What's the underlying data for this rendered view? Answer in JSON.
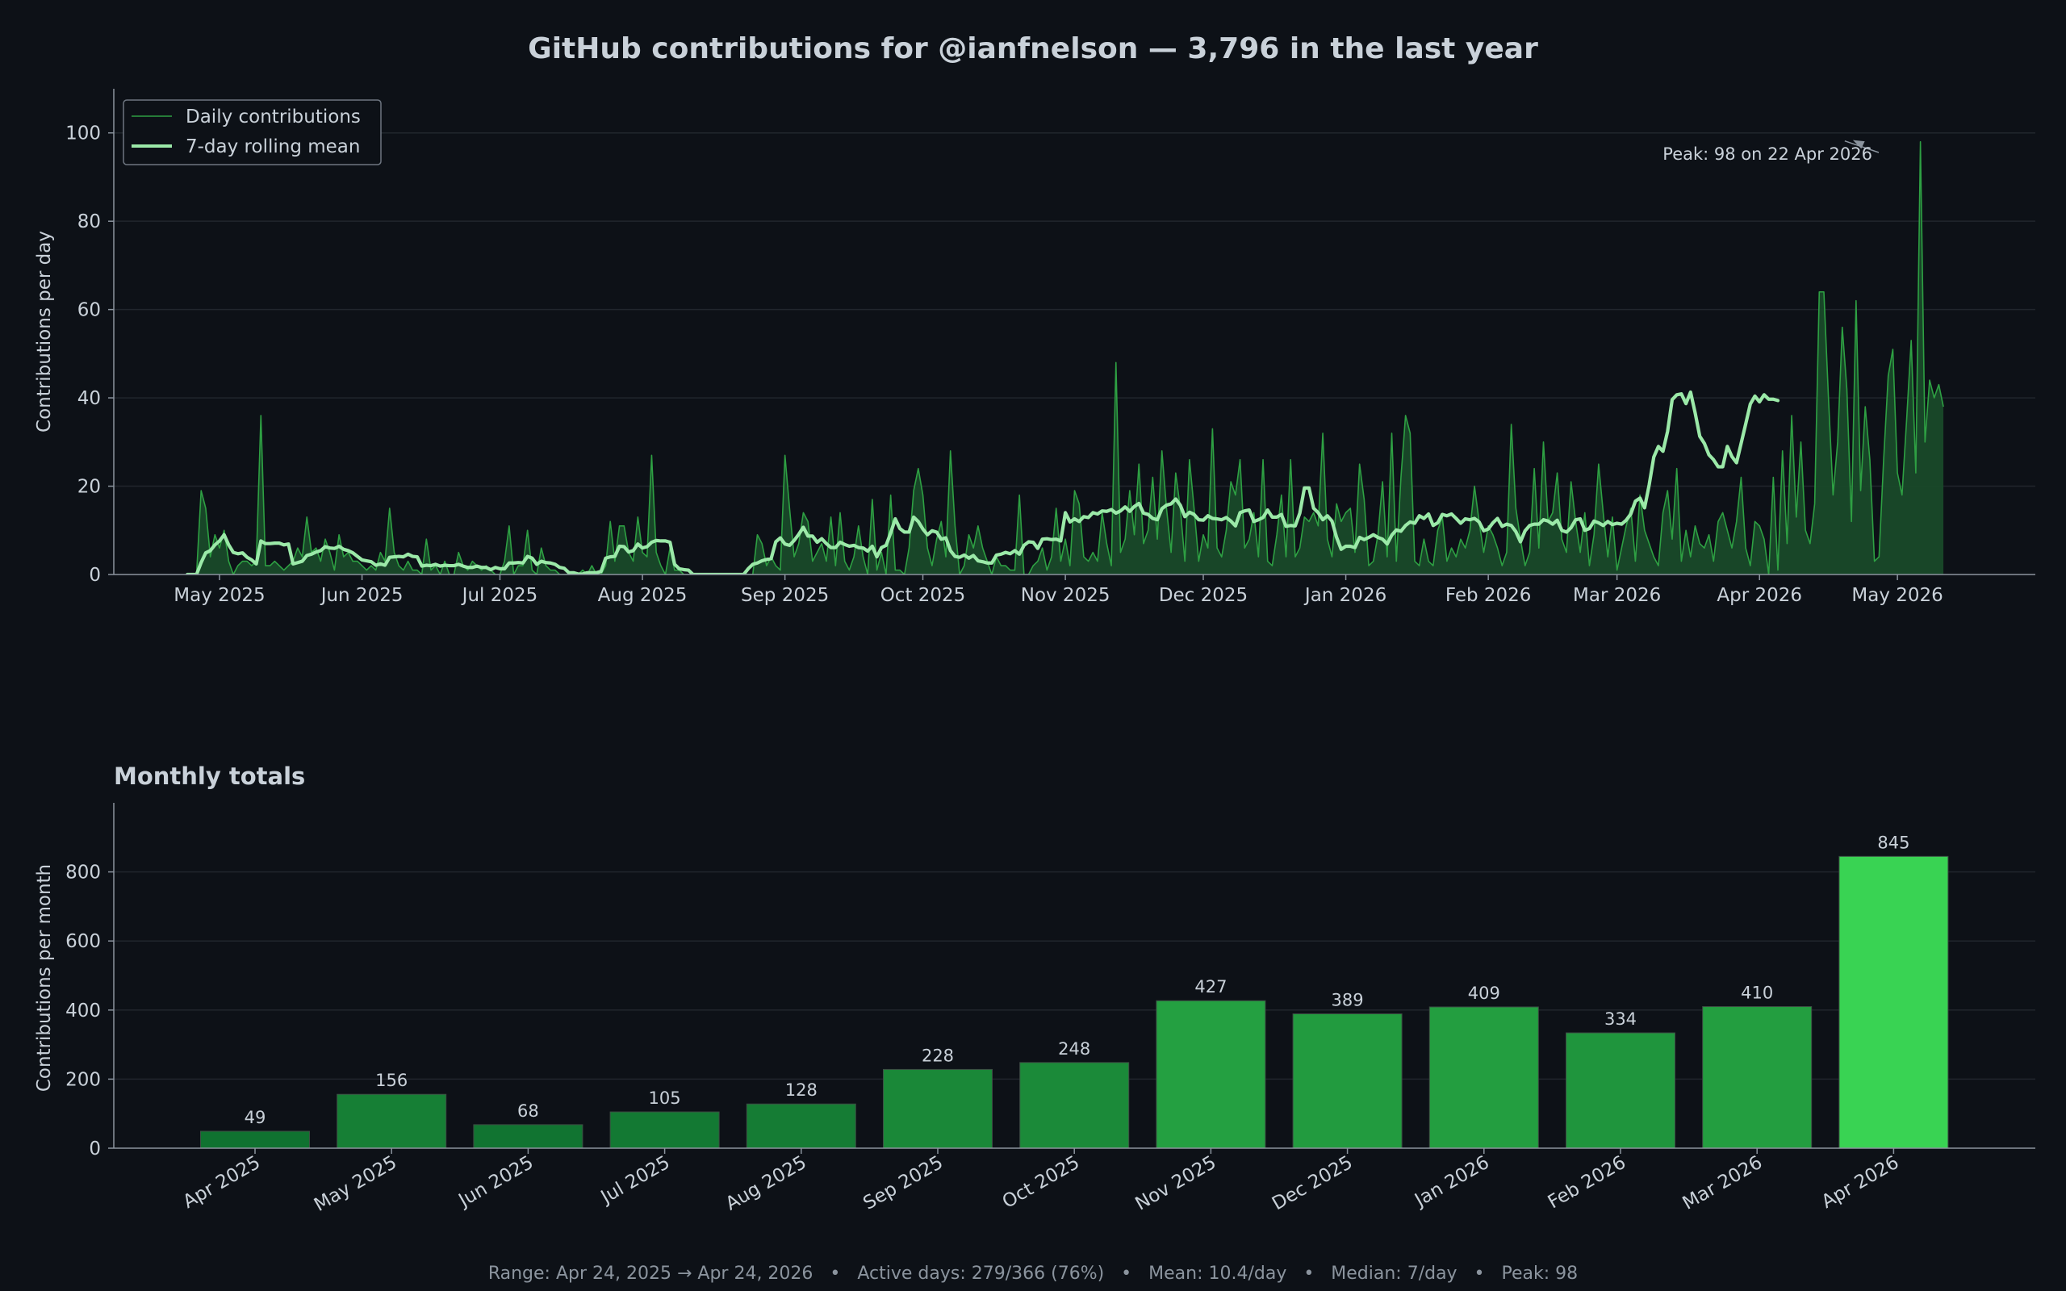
{
  "title": "GitHub contributions for @ianfnelson — 3,796 in the last year",
  "footer": "Range: Apr 24, 2025 → Apr 24, 2026   •   Active days: 279/366 (76%)   •   Mean: 10.4/day   •   Median: 7/day   •   Peak: 98",
  "colors": {
    "background": "#0d1117",
    "daily_line": "#2ea043",
    "daily_fill": "#1a4d2a",
    "rolling_line": "#9be9a8",
    "grid": "#21262d",
    "axis": "#8b949e",
    "text": "#c9d1d9"
  },
  "chart_data": [
    {
      "type": "area",
      "ylabel": "Contributions per day",
      "ylim": [
        0,
        110
      ],
      "yticks": [
        0,
        20,
        40,
        60,
        80,
        100
      ],
      "grid": true,
      "legend_position": "top-left",
      "x_range": [
        "2025-04-24",
        "2026-05-31"
      ],
      "xtick_dates": [
        "2025-05-01",
        "2025-06-01",
        "2025-07-01",
        "2025-08-01",
        "2025-09-01",
        "2025-10-01",
        "2025-11-01",
        "2025-12-01",
        "2026-01-01",
        "2026-02-01",
        "2026-03-01",
        "2026-04-01",
        "2026-05-01"
      ],
      "xtick_labels": [
        "May 2025",
        "Jun 2025",
        "Jul 2025",
        "Aug 2025",
        "Sep 2025",
        "Oct 2025",
        "Nov 2025",
        "Dec 2025",
        "Jan 2026",
        "Feb 2026",
        "Mar 2026",
        "Apr 2026",
        "May 2026"
      ],
      "annotation": {
        "text": "Peak: 98 on 22 Apr 2026",
        "x": "2026-04-22",
        "y": 98
      },
      "series": [
        {
          "name": "Daily contributions",
          "start": "2025-04-24",
          "values": [
            0,
            0,
            0,
            19,
            15,
            4,
            9,
            6,
            10,
            3,
            0,
            2,
            3,
            3,
            2,
            3,
            36,
            2,
            2,
            3,
            2,
            1,
            2,
            3,
            6,
            4,
            13,
            5,
            6,
            3,
            8,
            5,
            1,
            9,
            4,
            5,
            3,
            3,
            2,
            1,
            2,
            1,
            5,
            3,
            15,
            5,
            2,
            1,
            3,
            1,
            1,
            0,
            8,
            1,
            2,
            0,
            3,
            0,
            0,
            5,
            2,
            1,
            3,
            2,
            1,
            2,
            1,
            0,
            0,
            3,
            11,
            0,
            2,
            2,
            10,
            1,
            0,
            6,
            2,
            1,
            1,
            0,
            0,
            0,
            0,
            0,
            1,
            0,
            2,
            0,
            0,
            2,
            12,
            3,
            11,
            11,
            5,
            3,
            13,
            5,
            4,
            27,
            5,
            2,
            0,
            6,
            1,
            1,
            0,
            0,
            0,
            0,
            0,
            0,
            0,
            0,
            0,
            0,
            0,
            0,
            0,
            0,
            0,
            0,
            9,
            7,
            2,
            4,
            2,
            1,
            27,
            15,
            4,
            7,
            14,
            12,
            3,
            5,
            7,
            3,
            13,
            2,
            14,
            3,
            1,
            4,
            11,
            4,
            0,
            17,
            1,
            5,
            0,
            18,
            1,
            1,
            0,
            6,
            19,
            24,
            18,
            6,
            2,
            8,
            12,
            4,
            28,
            11,
            0,
            2,
            9,
            6,
            11,
            6,
            3,
            0,
            4,
            2,
            2,
            1,
            1,
            18,
            0,
            0,
            2,
            3,
            6,
            1,
            4,
            15,
            3,
            8,
            2,
            19,
            16,
            4,
            3,
            5,
            3,
            14,
            7,
            2,
            48,
            5,
            8,
            19,
            9,
            25,
            7,
            10,
            22,
            8,
            28,
            15,
            5,
            23,
            15,
            3,
            26,
            15,
            3,
            9,
            6,
            33,
            6,
            4,
            10,
            21,
            18,
            26,
            6,
            8,
            14,
            4,
            26,
            3,
            2,
            9,
            18,
            4,
            26,
            4,
            6,
            13,
            12,
            14,
            11,
            32,
            8,
            4,
            16,
            12,
            14,
            15,
            5,
            25,
            17,
            2,
            3,
            9,
            21,
            4,
            32,
            3,
            22,
            36,
            32,
            3,
            2,
            8,
            3,
            2,
            10,
            13,
            3,
            6,
            4,
            8,
            6,
            10,
            20,
            12,
            5,
            11,
            9,
            6,
            2,
            5,
            34,
            15,
            8,
            2,
            5,
            24,
            6,
            30,
            12,
            14,
            23,
            8,
            5,
            21,
            12,
            5,
            14,
            2,
            9,
            25,
            14,
            4,
            13,
            1,
            6,
            11,
            15,
            3,
            18,
            10,
            7,
            4,
            2,
            14,
            19,
            8,
            24,
            3,
            10,
            4,
            11,
            7,
            6,
            9,
            3,
            12,
            14,
            10,
            6,
            12,
            22,
            6,
            2,
            12,
            11,
            8,
            0,
            22,
            1,
            28,
            7,
            36,
            13,
            30,
            10,
            7,
            16,
            64,
            64,
            40,
            18,
            30,
            56,
            42,
            12,
            62,
            19,
            38,
            26,
            3,
            4,
            26,
            45,
            51,
            23,
            18,
            35,
            53,
            23,
            98,
            30,
            44,
            40,
            43,
            38
          ]
        },
        {
          "name": "7-day rolling mean",
          "start": "2025-04-24",
          "values": [
            0,
            0,
            0,
            2.7,
            4.9,
            5.4,
            6.7,
            7.6,
            9.0,
            6.7,
            5.0,
            4.7,
            4.9,
            3.9,
            3.3,
            2.4,
            7.6,
            7.0,
            7.0,
            7.1,
            7.1,
            6.7,
            6.9,
            2.4,
            2.7,
            3.0,
            4.3,
            4.6,
            5.1,
            5.4,
            6.3,
            6.0,
            5.9,
            6.4,
            5.7,
            5.4,
            4.9,
            4.1,
            3.3,
            3.1,
            2.9,
            2.1,
            2.4,
            2.1,
            3.9,
            4.0,
            4.1,
            4.0,
            4.6,
            4.1,
            4.0,
            1.9,
            2.1,
            2.0,
            2.3,
            1.9,
            2.1,
            2.0,
            2.0,
            2.3,
            1.9,
            1.6,
            1.6,
            1.9,
            1.6,
            1.6,
            1.1,
            1.6,
            1.3,
            1.3,
            2.6,
            2.6,
            2.7,
            2.6,
            4.1,
            3.7,
            2.3,
            3.0,
            2.7,
            2.6,
            2.3,
            1.6,
            1.4,
            0.4,
            0.4,
            0.1,
            0.1,
            0.4,
            0.4,
            0.4,
            0.7,
            3.7,
            4.0,
            4.1,
            6.4,
            6.3,
            5.1,
            5.4,
            6.9,
            6.0,
            6.3,
            7.3,
            7.7,
            7.6,
            7.6,
            7.3,
            2.3,
            1.3,
            1.1,
            1.0,
            0,
            0,
            0,
            0,
            0,
            0,
            0,
            0,
            0,
            0,
            0,
            0,
            1.3,
            2.3,
            2.6,
            3.1,
            3.4,
            3.6,
            7.4,
            8.3,
            6.9,
            6.6,
            7.7,
            9.1,
            10.7,
            8.7,
            8.7,
            7.3,
            8.1,
            7.0,
            6.1,
            6.1,
            7.3,
            6.8,
            6.4,
            6.6,
            6.1,
            6.0,
            5.3,
            6.4,
            4.0,
            6.1,
            6.6,
            9.4,
            12.6,
            10.4,
            9.6,
            9.6,
            13.0,
            12.0,
            10.3,
            9.0,
            9.9,
            9.6,
            8.0,
            8.3,
            5.4,
            4.1,
            3.9,
            4.4,
            3.7,
            4.3,
            3.1,
            2.9,
            2.6,
            2.6,
            4.4,
            4.6,
            5.0,
            4.7,
            5.4,
            4.6,
            6.6,
            7.4,
            7.3,
            5.9,
            8.0,
            8.1,
            7.9,
            8.0,
            7.6,
            14.0,
            11.9,
            12.6,
            12.0,
            13.1,
            12.9,
            14.0,
            13.7,
            14.4,
            14.3,
            14.7,
            13.9,
            14.4,
            15.3,
            14.3,
            15.4,
            16.1,
            13.9,
            13.6,
            12.7,
            12.4,
            14.9,
            15.7,
            16.0,
            17.1,
            15.7,
            13.1,
            14.1,
            13.6,
            12.4,
            12.3,
            13.3,
            12.7,
            12.6,
            12.4,
            12.9,
            12.1,
            11.0,
            14.0,
            14.4,
            14.6,
            12.0,
            12.4,
            12.9,
            14.6,
            13.0,
            13.0,
            13.6,
            10.9,
            11.1,
            11.0,
            13.9,
            19.6,
            19.6,
            15.0,
            14.0,
            12.4,
            13.3,
            12.1,
            8.4,
            5.7,
            6.4,
            6.4,
            6.1,
            8.4,
            7.9,
            8.4,
            9.0,
            8.4,
            8.0,
            6.9,
            8.9,
            10.1,
            9.8,
            11.1,
            11.9,
            11.6,
            13.3,
            12.7,
            13.7,
            11.1,
            11.7,
            13.6,
            13.3,
            13.7,
            12.7,
            11.6,
            12.6,
            12.4,
            12.7,
            11.9,
            9.9,
            10.3,
            11.7,
            12.7,
            10.9,
            11.4,
            11.1,
            9.7,
            7.4,
            9.9,
            11.1,
            11.4,
            11.4,
            12.4,
            12.1,
            11.4,
            12.3,
            10.0,
            9.6,
            10.6,
            12.4,
            12.6,
            10.0,
            10.4,
            12.1,
            11.7,
            11.1,
            12.0,
            11.3,
            11.6,
            11.4,
            12.3,
            13.7,
            16.6,
            17.3,
            15.1,
            20.3,
            26.6,
            29.0,
            27.9,
            32.4,
            39.6,
            40.7,
            40.9,
            38.7,
            41.3,
            36.6,
            31.3,
            29.7,
            27.1,
            26.0,
            24.4,
            24.4,
            29.0,
            26.7,
            25.3,
            29.7,
            34.1,
            38.6,
            40.4,
            39.1,
            40.7,
            39.7,
            39.7,
            39.4
          ]
        }
      ]
    },
    {
      "type": "bar",
      "title": "Monthly totals",
      "ylabel": "Contributions per month",
      "ylim": [
        0,
        1000
      ],
      "yticks": [
        0,
        200,
        400,
        600,
        800
      ],
      "grid": true,
      "categories": [
        "Apr 2025",
        "May 2025",
        "Jun 2025",
        "Jul 2025",
        "Aug 2025",
        "Sep 2025",
        "Oct 2025",
        "Nov 2025",
        "Dec 2025",
        "Jan 2026",
        "Feb 2026",
        "Mar 2026",
        "Apr 2026"
      ],
      "values": [
        49,
        156,
        68,
        105,
        128,
        228,
        248,
        427,
        389,
        409,
        334,
        410,
        845
      ]
    }
  ]
}
